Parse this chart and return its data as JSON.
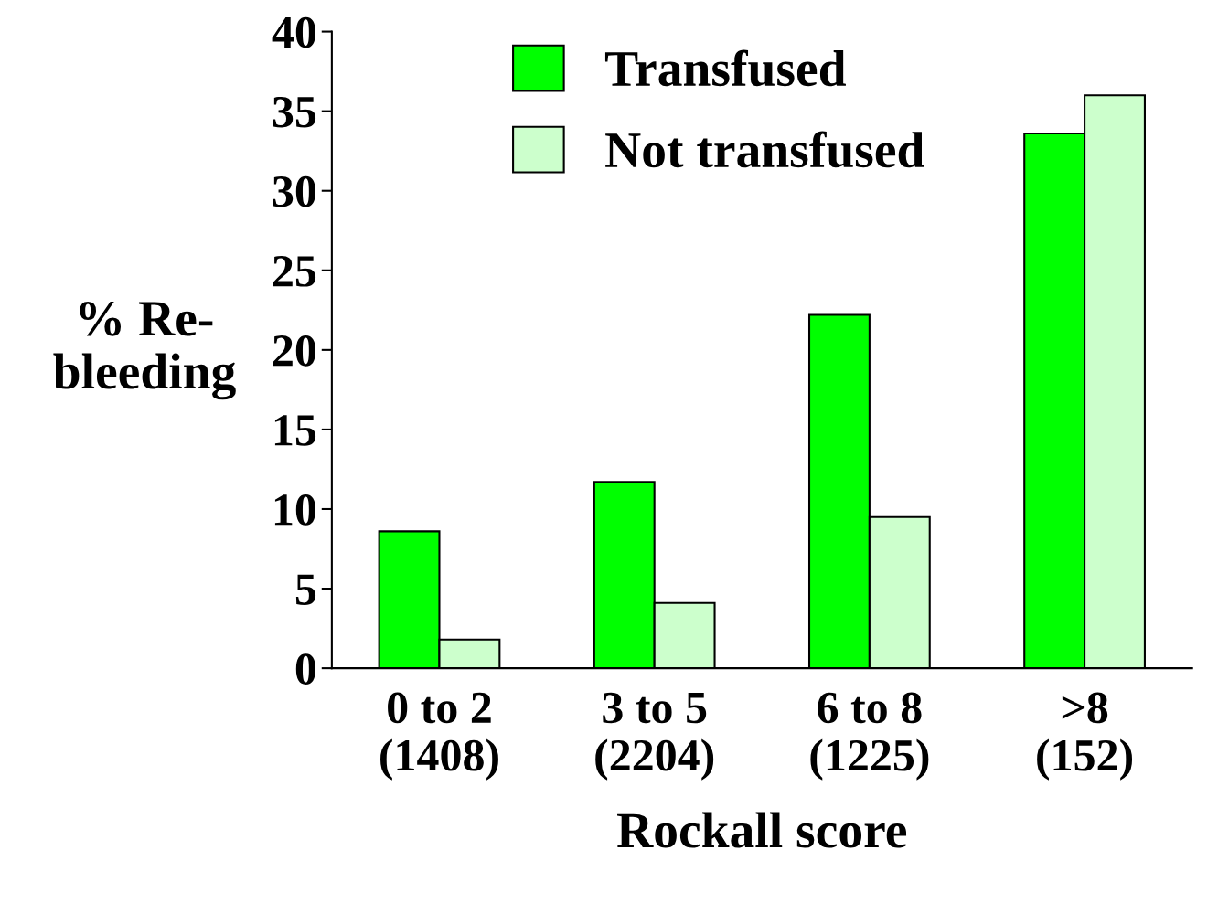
{
  "chart_data": {
    "type": "bar",
    "xlabel": "Rockall score",
    "ylabel": "% Re-\nbleeding",
    "categories": [
      "0 to 2\n(1408)",
      "3 to 5\n(2204)",
      "6 to 8\n(1225)",
      ">8\n(152)"
    ],
    "series": [
      {
        "name": "Transfused",
        "color": "#00ff00",
        "values": [
          8.6,
          11.7,
          22.2,
          33.6
        ]
      },
      {
        "name": "Not transfused",
        "color": "#ccffcc",
        "values": [
          1.8,
          4.1,
          9.5,
          36.0
        ]
      }
    ],
    "ylim": [
      0,
      40
    ],
    "yticks": [
      0,
      5,
      10,
      15,
      20,
      25,
      30,
      35,
      40
    ],
    "grid": false,
    "legend": "top"
  }
}
